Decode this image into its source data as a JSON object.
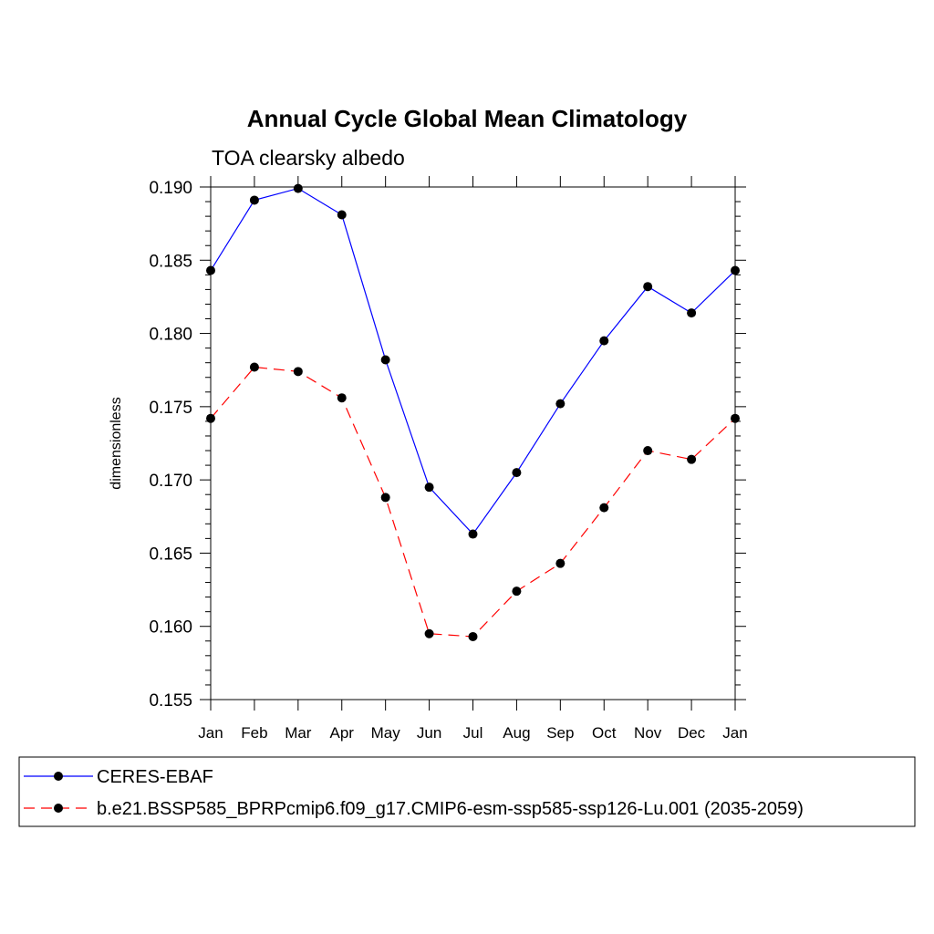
{
  "chart_data": {
    "type": "line",
    "title": "Annual Cycle Global Mean Climatology",
    "subtitle": "TOA clearsky albedo",
    "xlabel": "",
    "ylabel": "dimensionless",
    "categories": [
      "Jan",
      "Feb",
      "Mar",
      "Apr",
      "May",
      "Jun",
      "Jul",
      "Aug",
      "Sep",
      "Oct",
      "Nov",
      "Dec",
      "Jan"
    ],
    "ylim": [
      0.155,
      0.19
    ],
    "yticks": [
      "0.155",
      "0.160",
      "0.165",
      "0.170",
      "0.175",
      "0.180",
      "0.185",
      "0.190"
    ],
    "grid": false,
    "legend_position": "bottom",
    "series": [
      {
        "name": "CERES-EBAF",
        "color": "#0000ff",
        "line_style": "solid",
        "marker": "filled-circle",
        "values": [
          0.1843,
          0.1891,
          0.1899,
          0.1881,
          0.1782,
          0.1695,
          0.1663,
          0.1705,
          0.1752,
          0.1795,
          0.1832,
          0.1814,
          0.1843
        ]
      },
      {
        "name": "b.e21.BSSP585_BPRPcmip6.f09_g17.CMIP6-esm-ssp585-ssp126-Lu.001 (2035-2059)",
        "color": "#ff0000",
        "line_style": "dashed",
        "marker": "filled-circle",
        "values": [
          0.1742,
          0.1777,
          0.1774,
          0.1756,
          0.1688,
          0.1595,
          0.1593,
          0.1624,
          0.1643,
          0.1681,
          0.172,
          0.1714,
          0.1742
        ]
      }
    ]
  }
}
